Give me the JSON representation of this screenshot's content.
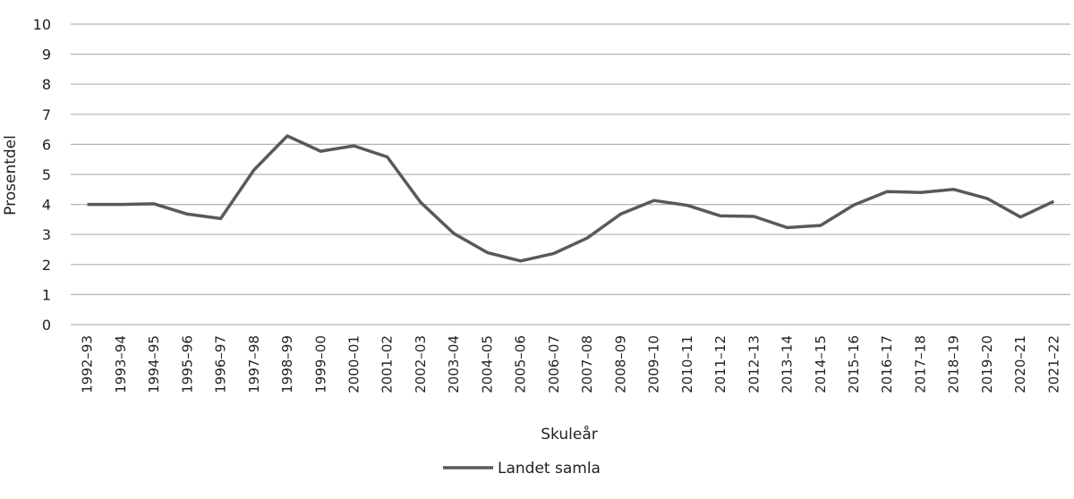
{
  "chart_data": {
    "type": "line",
    "title": "",
    "xlabel": "Skuleår",
    "ylabel": "Prosentdel",
    "ylim": [
      0,
      10
    ],
    "yticks": [
      0,
      1,
      2,
      3,
      4,
      5,
      6,
      7,
      8,
      9,
      10
    ],
    "grid": true,
    "legend_position": "bottom",
    "categories": [
      "1992–93",
      "1993–94",
      "1994–95",
      "1995–96",
      "1996–97",
      "1997–98",
      "1998–99",
      "1999–00",
      "2000–01",
      "2001–02",
      "2002–03",
      "2003–04",
      "2004–05",
      "2005–06",
      "2006–07",
      "2007–08",
      "2008–09",
      "2009–10",
      "2010–11",
      "2011–12",
      "2012–13",
      "2013–14",
      "2014–15",
      "2015–16",
      "2016–17",
      "2017–18",
      "2018–19",
      "2019–20",
      "2020–21",
      "2021–22"
    ],
    "series": [
      {
        "name": "Landet samla",
        "color": "#58595b",
        "values": [
          4.0,
          4.0,
          4.02,
          3.68,
          3.53,
          5.15,
          6.28,
          5.77,
          5.95,
          5.58,
          4.07,
          3.03,
          2.4,
          2.12,
          2.37,
          2.88,
          3.68,
          4.13,
          3.97,
          3.62,
          3.6,
          3.23,
          3.3,
          3.98,
          4.43,
          4.4,
          4.5,
          4.2,
          3.58,
          4.1
        ]
      }
    ]
  },
  "colors": {
    "gridline": "#b3b3b3",
    "line": "#58595b",
    "text": "#231f20"
  }
}
